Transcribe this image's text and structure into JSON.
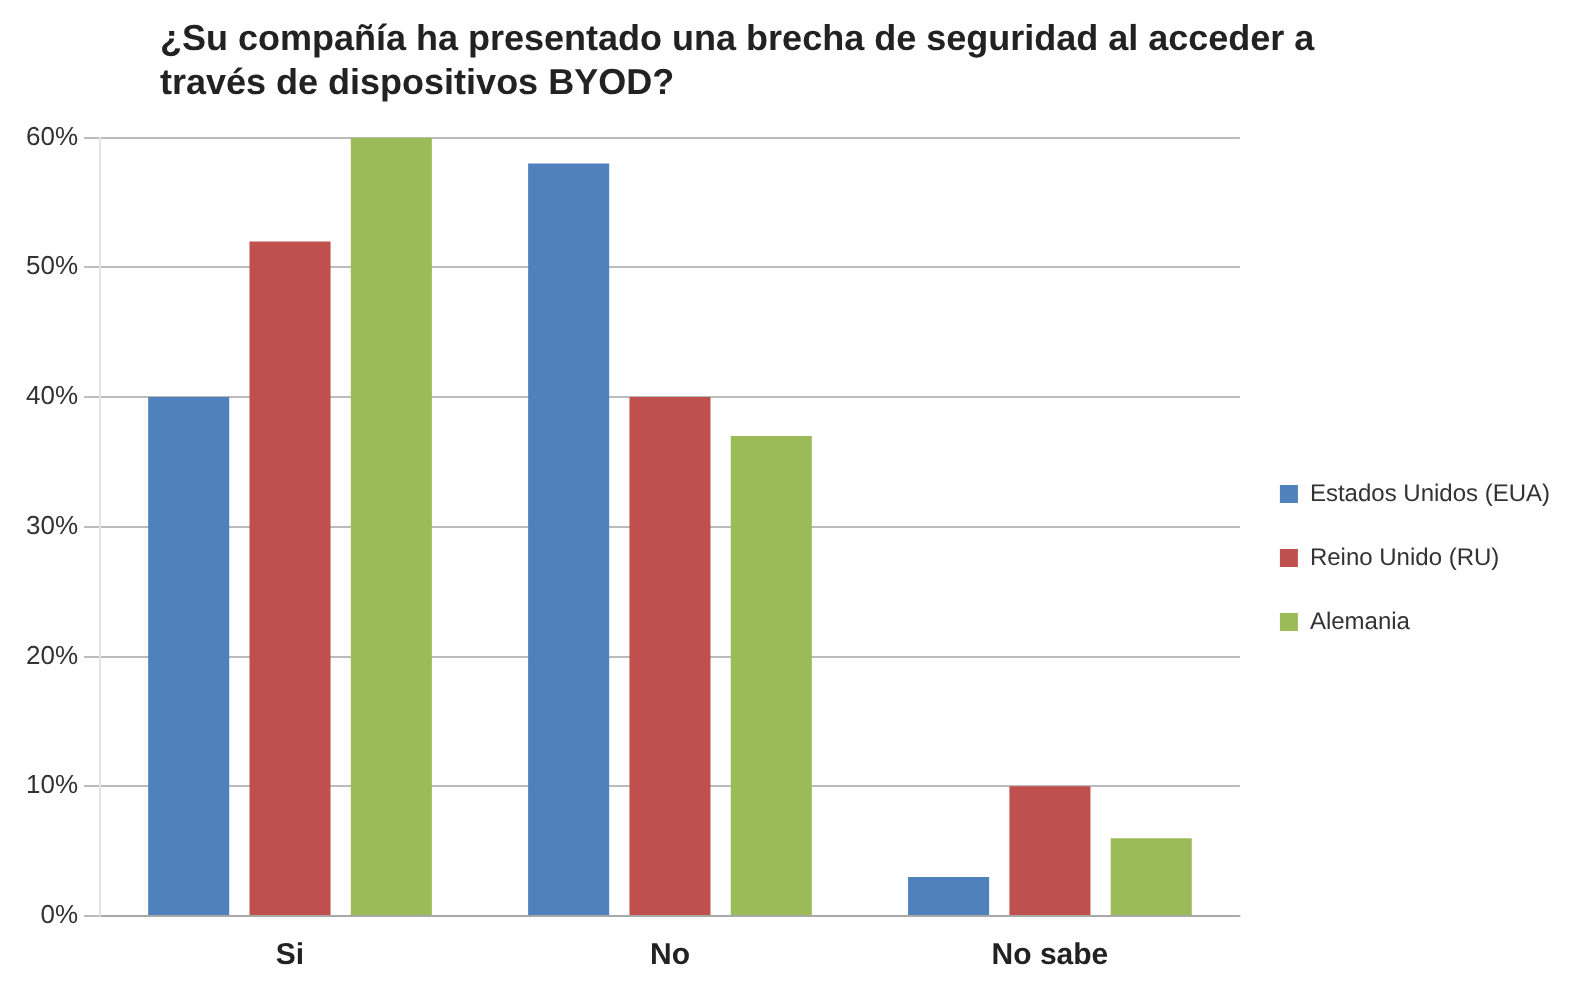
{
  "chart_data": {
    "type": "bar",
    "title": "¿Su compañía ha presentado una brecha de seguridad al acceder a través de dispositivos BYOD?",
    "categories": [
      "Si",
      "No",
      "No sabe"
    ],
    "series": [
      {
        "name": "Estados Unidos (EUA)",
        "color": "#4f81bd",
        "values": [
          40,
          58,
          3
        ]
      },
      {
        "name": "Reino Unido (RU)",
        "color": "#c0504d",
        "values": [
          52,
          40,
          10
        ]
      },
      {
        "name": "Alemania",
        "color": "#9bbb59",
        "values": [
          60,
          37,
          6
        ]
      }
    ],
    "ylim": [
      0,
      60
    ],
    "yticks": [
      {
        "value": 0,
        "label": "0%"
      },
      {
        "value": 10,
        "label": "10%"
      },
      {
        "value": 20,
        "label": "20%"
      },
      {
        "value": 30,
        "label": "30%"
      },
      {
        "value": 40,
        "label": "40%"
      },
      {
        "value": 50,
        "label": "50%"
      },
      {
        "value": 60,
        "label": "60%"
      }
    ],
    "grid": "y",
    "legend": "right"
  }
}
